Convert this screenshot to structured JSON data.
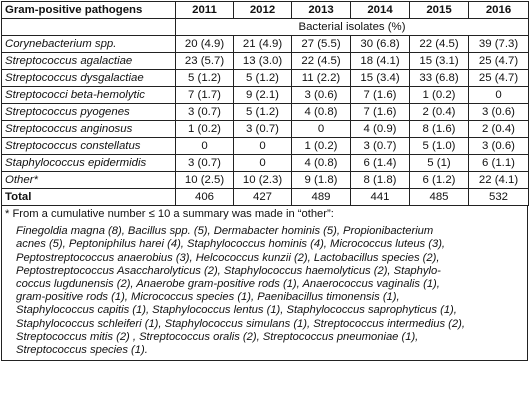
{
  "header": {
    "col0": "Gram-positive pathogens",
    "years": [
      "2011",
      "2012",
      "2013",
      "2014",
      "2015",
      "2016"
    ],
    "subheader": "Bacterial isolates (%)"
  },
  "rows": [
    {
      "name": "Corynebacterium spp.",
      "cells": [
        [
          "20",
          "4.9"
        ],
        [
          "21",
          "4.9"
        ],
        [
          "27",
          "5.5"
        ],
        [
          "30",
          "6.8"
        ],
        [
          "22",
          "4.5"
        ],
        [
          "39",
          "7.3"
        ]
      ]
    },
    {
      "name": "Streptococcus agalactiae",
      "cells": [
        [
          "23",
          "5.7"
        ],
        [
          "13",
          "3.0"
        ],
        [
          "22",
          "4.5"
        ],
        [
          "18",
          "4.1"
        ],
        [
          "15",
          "3.1"
        ],
        [
          "25",
          "4.7"
        ]
      ]
    },
    {
      "name": "Streptococcus dysgalactiae",
      "cells": [
        [
          "5",
          "1.2"
        ],
        [
          "5",
          "1.2"
        ],
        [
          "11",
          "2.2"
        ],
        [
          "15",
          "3.4"
        ],
        [
          "33",
          "6.8"
        ],
        [
          "25",
          "4.7"
        ]
      ]
    },
    {
      "name": "Streptococci beta-hemolytic",
      "cells": [
        [
          "7",
          "1.7"
        ],
        [
          "9",
          "2.1"
        ],
        [
          "3",
          "0.6"
        ],
        [
          "7",
          "1.6"
        ],
        [
          "1",
          "0.2"
        ],
        [
          "0",
          ""
        ]
      ]
    },
    {
      "name": "Streptococcus pyogenes",
      "cells": [
        [
          "3",
          "0.7"
        ],
        [
          "5",
          "1.2"
        ],
        [
          "4",
          "0.8"
        ],
        [
          "7",
          "1.6"
        ],
        [
          "2",
          "0.4"
        ],
        [
          "3",
          "0.6"
        ]
      ]
    },
    {
      "name": "Streptococcus anginosus",
      "cells": [
        [
          "1",
          "0.2"
        ],
        [
          "3",
          "0.7"
        ],
        [
          "0",
          ""
        ],
        [
          "4",
          "0.9"
        ],
        [
          "8",
          "1.6"
        ],
        [
          "2",
          "0.4"
        ]
      ]
    },
    {
      "name": "Streptococcus constellatus",
      "cells": [
        [
          "0",
          ""
        ],
        [
          "0",
          ""
        ],
        [
          "1",
          "0.2"
        ],
        [
          "3",
          "0.7"
        ],
        [
          "5",
          "1.0"
        ],
        [
          "3",
          "0.6"
        ]
      ]
    },
    {
      "name": "Staphylococcus epidermidis",
      "cells": [
        [
          "3",
          "0.7"
        ],
        [
          "0",
          ""
        ],
        [
          "4",
          "0.8"
        ],
        [
          "6",
          "1.4"
        ],
        [
          "5",
          "1"
        ],
        [
          "6",
          "1.1"
        ]
      ]
    },
    {
      "name": "Other*",
      "cells": [
        [
          "10",
          "2.5"
        ],
        [
          "10",
          "2.3"
        ],
        [
          "9",
          "1.8"
        ],
        [
          "8",
          "1.8"
        ],
        [
          "6",
          "1.2"
        ],
        [
          "22",
          "4.1"
        ]
      ]
    }
  ],
  "total": {
    "label": "Total",
    "values": [
      "406",
      "427",
      "489",
      "441",
      "485",
      "532"
    ]
  },
  "footnote": {
    "lead": "* From a cumulative number ≤ 10 a summary was made in “other”:",
    "lines": [
      "Finegoldia magna (8), Bacillus spp. (5), Dermabacter hominis (5), Propionibacterium",
      "acnes (5), Peptoniphilus harei (4), Staphylococcus hominis (4), Micrococcus luteus (3),",
      "Peptostreptococcus anaerobius (3), Helcococcus kunzii (2), Lactobacillus species (2),",
      "Peptostreptococcus Asaccharolyticus (2), Staphylococcus haemolyticus (2), Staphylo-",
      "coccus lugdunensis (2), Anaerobe gram-positive rods (1), Anaerococcus vaginalis (1),",
      "gram-positive rods (1), Micrococcus species (1), Paenibacillus timonensis (1),",
      "Staphylococcus capitis (1), Staphylococcus lentus (1), Staphylococcus saprophyticus (1),",
      "Staphylococcus schleiferi (1), Staphylococcus simulans (1), Streptococcus intermedius (2),",
      "Streptococcus mitis (2) , Streptococcus oralis (2), Streptococcus pneumoniae (1),",
      "Streptococcus species (1)."
    ]
  }
}
